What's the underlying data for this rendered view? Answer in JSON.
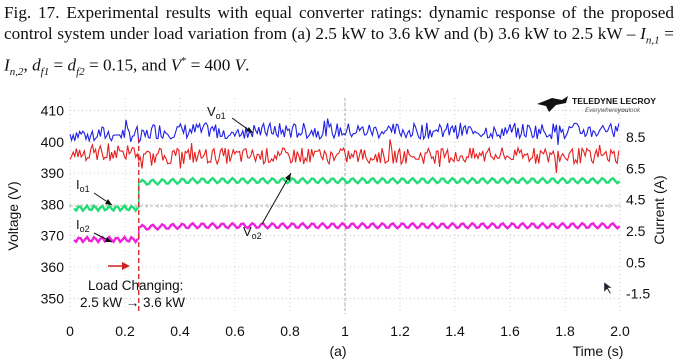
{
  "caption": {
    "label": "Fig. 17.",
    "text_1": "Experimental results with equal converter ratings: dynamic response of the proposed control system under load variation from (a) 2.5 kW to 3.6 kW and (b) 3.6 kW to 2.5 kW –",
    "eq_I1": "I",
    "eq_I1_sub": "n,1",
    "eq_eq1": " = ",
    "eq_I2": "I",
    "eq_I2_sub": "n,2",
    "eq_comma1": ", ",
    "eq_d1": "d",
    "eq_d1_sub": "f1",
    "eq_eq2": " = ",
    "eq_d2": "d",
    "eq_d2_sub": "f2",
    "eq_val": " = 0.15, and ",
    "eq_V": "V",
    "eq_V_sup": "*",
    "eq_vval": " = 400 ",
    "eq_unit": "V",
    "eq_end": "."
  },
  "logo": {
    "brand": "TELEDYNE LECROY",
    "tagline_a": "Everywhere",
    "tagline_b": "you",
    "tagline_c": "look"
  },
  "chart_data": {
    "type": "line",
    "subfigure_label": "(a)",
    "xlabel": "Time (s)",
    "ylabel_left": "Voltage (V)",
    "ylabel_right": "Current (A)",
    "xlim": [
      0,
      2.0
    ],
    "ylim_left": [
      345,
      414
    ],
    "x_ticks": [
      "0",
      "0.2",
      "0.4",
      "0.6",
      "0.8",
      "1",
      "1.2",
      "1.4",
      "1.6",
      "1.8",
      "2.0"
    ],
    "y_ticks_left": [
      "350",
      "360",
      "370",
      "380",
      "390",
      "400",
      "410"
    ],
    "y_ticks_right": [
      "-1.5",
      "0.5",
      "2.5",
      "4.5",
      "6.5",
      "8.5"
    ],
    "grid": true,
    "load_step_time": 0.25,
    "series": [
      {
        "name": "Vo1",
        "color": "#1f1fe6",
        "before": 402.5,
        "after": 403.5,
        "ripple": 2.6
      },
      {
        "name": "Vo2",
        "color": "#e61f1f",
        "before": 396.5,
        "after": 395.5,
        "ripple": 2.6
      },
      {
        "name": "Io1",
        "color": "#22dd77",
        "before": 378.8,
        "after": 387.6,
        "ripple": 0.8
      },
      {
        "name": "Io2",
        "color": "#ee22dd",
        "before": 368.8,
        "after": 373.2,
        "ripple": 0.8
      }
    ],
    "annotations": {
      "vo1_main": "V",
      "vo1_sub": "o1",
      "vo2_main": "V",
      "vo2_sub": "o2",
      "io1_main": "I",
      "io1_sub": "o1",
      "io2_main": "I",
      "io2_sub": "o2",
      "load_line1": "Load Changing:",
      "load_line2": "2.5 kW → 3.6 kW"
    }
  }
}
